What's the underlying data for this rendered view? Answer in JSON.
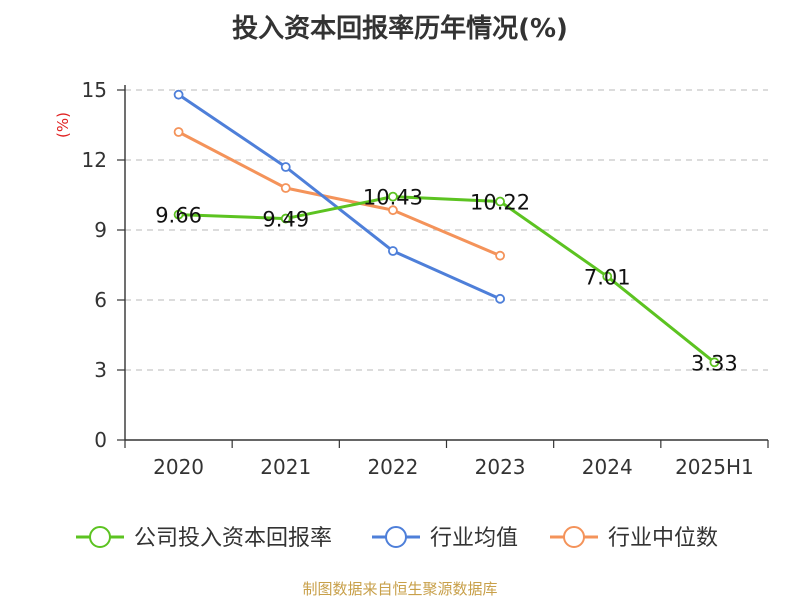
{
  "chart_data": {
    "type": "line",
    "title": "投入资本回报率历年情况(%)",
    "ylabel": "(%)",
    "categories": [
      "2020",
      "2021",
      "2022",
      "2023",
      "2024",
      "2025H1"
    ],
    "ylim": [
      0,
      15
    ],
    "yticks": [
      0,
      3,
      6,
      9,
      12,
      15
    ],
    "grid": true,
    "legend_position": "bottom",
    "series": [
      {
        "name": "公司投入资本回报率",
        "color": "#5cc321",
        "values": [
          9.66,
          9.49,
          10.43,
          10.22,
          7.01,
          3.33
        ],
        "labels": [
          "9.66",
          "9.49",
          "10.43",
          "10.22",
          "7.01",
          "3.33"
        ]
      },
      {
        "name": "行业均值",
        "color": "#4e7fd9",
        "values": [
          14.8,
          11.7,
          8.1,
          6.05,
          null,
          null
        ]
      },
      {
        "name": "行业中位数",
        "color": "#f4935a",
        "values": [
          13.2,
          10.8,
          9.85,
          7.9,
          null,
          null
        ]
      }
    ]
  },
  "source": "制图数据来自恒生聚源数据库"
}
